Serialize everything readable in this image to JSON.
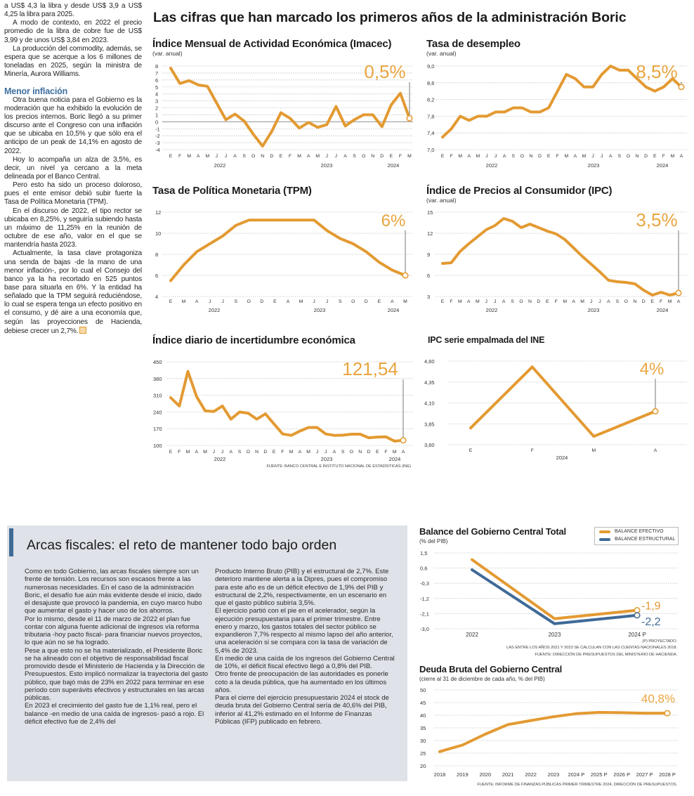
{
  "left_column": {
    "paragraphs_top": [
      "a US$ 4,3 la libra y desde US$ 3,9 a US$ 4,25 la libra para 2025.",
      "A modo de contexto, en 2022 el precio promedio de la libra de cobre fue de US$ 3,99 y de unos US$ 3,84 en 2023.",
      "La producción del commodity, además, se espera que se acerque a los 6 millones de toneladas en 2025, según la ministra de Minería, Aurora Williams."
    ],
    "heading": "Menor inflación",
    "paragraphs_bottom": [
      "Otra buena noticia para el Gobierno es la moderación que ha exhibido la evolución de los precios internos. Boric llegó a su primer discurso ante el Congreso con una inflación que se ubicaba en 10,5% y que sólo era el anticipo de un peak de 14,1% en agosto de 2022.",
      "Hoy lo acompaña un alza de 3,5%, es decir, un nivel ya cercano a la meta delineada por el Banco Central.",
      "Pero esto ha sido un proceso doloroso, pues el ente emisor debió subir fuerte la Tasa de Política Monetaria (TPM).",
      "En el discurso de 2022, el tipo rector se ubicaba en 8,25%, y seguiría subiendo hasta un máximo de 11,25% en la reunión de octubre de ese año, valor en el que se mantendría hasta 2023.",
      "Actualmente, la tasa clave protagoniza una senda de bajas -de la mano de una menor inflación-, por lo cual el Consejo del banco ya la ha recortado en 525 puntos base para situarla en 6%. Y la entidad ha señalado que la TPM seguirá reduciéndose, lo cual se espera tenga un efecto positivo en el consumo, y dé aire a una economía que, según las proyecciones de Hacienda, debiese crecer un 2,7%."
    ]
  },
  "main_title": "Las cifras que han marcado los primeros años de la administración Boric",
  "fiscal": {
    "title": "Arcas fiscales: el reto de mantener todo bajo orden",
    "col1": [
      "Como en todo Gobierno, las arcas fiscales siempre son un frente de tensión. Los recursos son escasos frente a las numerosas necesidades. En el caso de la administración Boric, el desafío fue aún más evidente desde el inicio, dado el desajuste que provocó la pandemia, en cuyo marco hubo que aumentar el gasto y hacer uso de los ahorros.",
      "Por lo mismo, desde el 11 de marzo de 2022 el plan fue contar con alguna fuente adicional de ingresos vía reforma tributaria -hoy pacto fiscal- para financiar nuevos proyectos, lo que aún no se ha logrado.",
      "Pese a que esto no se ha materializado, el Presidente Boric se ha alineado con el objetivo de responsabilidad fiscal promovido desde el Ministerio de Hacienda y la Dirección de Presupuestos. Esto implicó normalizar la trayectoria del gasto público, que bajó más de 23% en 2022 para terminar en ese período con superávits efectivos y estructurales en las arcas públicas.",
      "En 2023 el crecimiento del gasto fue de 1,1% real, pero el balance -en medio de una caída de ingresos- pasó a rojo. El déficit efectivo fue de 2,4% del"
    ],
    "col2": [
      "Producto Interno Bruto (PIB) y el estructural de 2,7%. Este deterioro mantiene alerta a la Dipres, pues el compromiso para este año es de un déficit efectivo de 1,9% del PIB y estructural de 2,2%, respectivamente, en un escenario en que el gasto público subiría 3,5%.",
      "El ejercicio partió con el pie en el acelerador, según la ejecución presupuestaria para el primer trimestre. Entre enero y marzo, los gastos totales del sector público se expandieron 7,7% respecto al mismo lapso del año anterior, una aceleración si se compara con la tasa de variación de 5,4% de 2023.",
      "En medio de una caída de los ingresos del Gobierno Central de 10%, el déficit fiscal efectivo llegó a 0,8% del PIB.",
      "Otro frente de preocupación de las autoridades es ponerle coto a la deuda pública, que ha aumentado en los últimos años.",
      "Para el cierre del ejercicio presupuestario 2024 el stock de deuda bruta del Gobierno Central sería de 40,6% del PIB, inferior al 41,2% estimado en el Informe de Finanzas Públicas (IFP) publicado en febrero."
    ]
  },
  "colors": {
    "series_orange": "#e39a32",
    "series_blue": "#3f6a97",
    "highlight": "#e9a540",
    "box_bg": "#dfe2e8"
  },
  "chart_data": [
    {
      "id": "imacec",
      "type": "line",
      "title": "Índice Mensual de Actividad Económica (Imacec)",
      "subtitle": "(var. anual)",
      "categories": [
        "E",
        "F",
        "M",
        "A",
        "M",
        "J",
        "J",
        "A",
        "S",
        "O",
        "N",
        "D",
        "E",
        "F",
        "M",
        "A",
        "M",
        "J",
        "J",
        "A",
        "S",
        "O",
        "N",
        "D",
        "E",
        "F",
        "M"
      ],
      "year_labels": [
        "2022",
        "2023",
        "2024"
      ],
      "ylim": [
        -4,
        8
      ],
      "y_ticks": [
        8,
        7,
        6,
        5,
        4,
        3,
        2,
        1,
        0,
        -1,
        -2,
        -3,
        -4
      ],
      "series": [
        {
          "values": [
            7.7,
            5.5,
            5.9,
            5.3,
            5.1,
            2.7,
            0.3,
            1.1,
            0.1,
            -1.8,
            -3.5,
            -1.4,
            1.3,
            0.5,
            -0.9,
            -0.1,
            -0.8,
            -0.4,
            2.2,
            -0.6,
            0.3,
            1.0,
            1.0,
            -0.7,
            2.4,
            4.1,
            0.5
          ]
        }
      ],
      "highlight_label": "0,5%",
      "grid": true
    },
    {
      "id": "desempleo",
      "type": "line",
      "title": "Tasa de desempleo",
      "subtitle": "(var. anual)",
      "categories": [
        "E",
        "F",
        "M",
        "A",
        "M",
        "J",
        "J",
        "A",
        "S",
        "O",
        "N",
        "D",
        "E",
        "F",
        "M",
        "A",
        "M",
        "J",
        "J",
        "A",
        "S",
        "O",
        "N",
        "D",
        "E",
        "F",
        "M",
        "A"
      ],
      "year_labels": [
        "2022",
        "2023",
        "2024"
      ],
      "ylim": [
        7.0,
        9.0
      ],
      "y_ticks": [
        "9,0",
        "8,6",
        "8,2",
        "7,8",
        "7,4",
        "7,0"
      ],
      "series": [
        {
          "values": [
            7.3,
            7.5,
            7.8,
            7.7,
            7.8,
            7.8,
            7.9,
            7.9,
            8.0,
            8.0,
            7.9,
            7.9,
            8.0,
            8.4,
            8.8,
            8.7,
            8.5,
            8.5,
            8.8,
            9.0,
            8.9,
            8.9,
            8.7,
            8.5,
            8.4,
            8.5,
            8.7,
            8.5
          ]
        }
      ],
      "highlight_label": "8,5%",
      "grid": true
    },
    {
      "id": "tpm",
      "type": "line",
      "title": "Tasa de Política Monetaria (TPM)",
      "subtitle": "",
      "categories": [
        "E",
        "M",
        "A",
        "J",
        "J",
        "S",
        "O",
        "D",
        "E",
        "A",
        "M",
        "J",
        "J",
        "S",
        "O",
        "D",
        "E",
        "A",
        "M"
      ],
      "year_labels": [
        "2022",
        "2023",
        "2024"
      ],
      "ylim": [
        4,
        12
      ],
      "y_ticks": [
        "12",
        "10",
        "8",
        "6",
        "4"
      ],
      "series": [
        {
          "values": [
            5.5,
            7.0,
            8.25,
            9.0,
            9.75,
            10.75,
            11.25,
            11.25,
            11.25,
            11.25,
            11.25,
            11.25,
            10.25,
            9.5,
            9.0,
            8.25,
            7.25,
            6.5,
            6.0
          ]
        }
      ],
      "highlight_label": "6%",
      "grid": true
    },
    {
      "id": "ipc",
      "type": "line",
      "title": "Índice de Precios al Consumidor (IPC)",
      "subtitle": "(var. anual)",
      "categories": [
        "E",
        "F",
        "M",
        "A",
        "M",
        "J",
        "J",
        "A",
        "S",
        "O",
        "N",
        "D",
        "E",
        "F",
        "M",
        "A",
        "M",
        "J",
        "J",
        "A",
        "S",
        "O",
        "N",
        "D",
        "E",
        "F",
        "M",
        "A"
      ],
      "year_labels": [
        "2022",
        "2023",
        "2024"
      ],
      "ylim": [
        3,
        15
      ],
      "y_ticks": [
        "15",
        "12",
        "9",
        "6",
        "3"
      ],
      "series": [
        {
          "values": [
            7.7,
            7.8,
            9.4,
            10.5,
            11.5,
            12.5,
            13.1,
            14.1,
            13.7,
            12.8,
            13.3,
            12.8,
            12.3,
            11.9,
            11.1,
            9.9,
            8.7,
            7.6,
            6.5,
            5.3,
            5.1,
            5.0,
            4.8,
            3.9,
            3.2,
            3.6,
            3.2,
            3.5
          ]
        }
      ],
      "highlight_label": "3,5%",
      "grid": true
    },
    {
      "id": "incertidumbre",
      "type": "line",
      "title": "Índice diario de incertidumbre económica",
      "subtitle": "",
      "categories": [
        "E",
        "F",
        "M",
        "A",
        "M",
        "J",
        "J",
        "A",
        "S",
        "O",
        "N",
        "D",
        "E",
        "F",
        "M",
        "A",
        "M",
        "J",
        "J",
        "A",
        "S",
        "O",
        "N",
        "D",
        "E",
        "F",
        "M",
        "A"
      ],
      "year_labels": [
        "2022",
        "2023",
        "2024"
      ],
      "ylim": [
        100,
        450
      ],
      "y_ticks": [
        "450",
        "380",
        "310",
        "240",
        "170",
        "100"
      ],
      "series": [
        {
          "values": [
            300,
            265,
            410,
            305,
            245,
            242,
            265,
            210,
            240,
            235,
            210,
            232,
            190,
            148,
            142,
            160,
            175,
            175,
            148,
            142,
            143,
            147,
            147,
            132,
            135,
            136,
            118,
            121.54
          ]
        }
      ],
      "highlight_label": "121,54",
      "source": "FUENTE: BANCO CENTRAL E INSTITUTO NACIONAL DE ESTADÍSTICAS (INE)",
      "grid": true
    },
    {
      "id": "ipc-empalmada",
      "type": "line",
      "title": "IPC serie empalmada del INE",
      "subtitle": "",
      "categories": [
        "E",
        "F",
        "M",
        "A"
      ],
      "year_labels": [
        "2024"
      ],
      "ylim": [
        3.6,
        4.6
      ],
      "y_ticks": [
        "4,60",
        "4,35",
        "4,10",
        "3,85",
        "3,60"
      ],
      "series": [
        {
          "values": [
            3.8,
            4.53,
            3.7,
            4.0
          ]
        }
      ],
      "highlight_label": "4%",
      "grid": true
    },
    {
      "id": "balance",
      "type": "line",
      "title": "Balance del Gobierno Central Total",
      "subtitle": "(% del PIB)",
      "categories": [
        "2022",
        "2023",
        "2024 P"
      ],
      "ylim": [
        -3.0,
        1.5
      ],
      "y_ticks": [
        "1,5",
        "0,6",
        "-0,3",
        "-1,2",
        "-2,1",
        "-3,0"
      ],
      "series": [
        {
          "name": "BALANCE EFECTIVO",
          "color": "#e39a32",
          "values": [
            1.1,
            -2.4,
            -1.9
          ],
          "end_label": "-1,9"
        },
        {
          "name": "BALANCE ESTRUCTURAL",
          "color": "#3f6a97",
          "values": [
            0.5,
            -2.7,
            -2.2
          ],
          "end_label": "-2,2"
        }
      ],
      "legend": "top-right",
      "notes": [
        "(P) PROYECTADO.",
        "LAS ENTRE LOS AÑOS 2021 Y 2023 SE CALCULAN  CON LAS CUENTAS NACIONALES 2018.",
        "FUENTE: DIRECCIÓN DE PRESUPUESTOS DEL MINISTERIO DE HACIENDA."
      ],
      "grid": true
    },
    {
      "id": "deuda",
      "type": "line",
      "title": "Deuda Bruta del Gobierno Central",
      "subtitle": "(cierre al 31 de diciembre de cada año, % del PIB)",
      "categories": [
        "2018",
        "2019",
        "2020",
        "2021",
        "2022",
        "2023",
        "2024 P",
        "2025 P",
        "2026 P",
        "2027 P",
        "2028 P"
      ],
      "ylim": [
        20,
        50
      ],
      "y_ticks": [
        "50",
        "45",
        "40",
        "35",
        "30",
        "25",
        "20"
      ],
      "series": [
        {
          "values": [
            25.6,
            28.2,
            32.5,
            36.3,
            37.9,
            39.4,
            40.6,
            41.1,
            41.0,
            40.8,
            40.8
          ]
        }
      ],
      "highlight_label": "40,8%",
      "source": "FUENTE: INFORME DE FINANZAS PÚBLICAS PRIMER TRIMESTRE 2024, DIRECCIÓN DE PRESUPUESTOS.",
      "grid": true
    }
  ]
}
